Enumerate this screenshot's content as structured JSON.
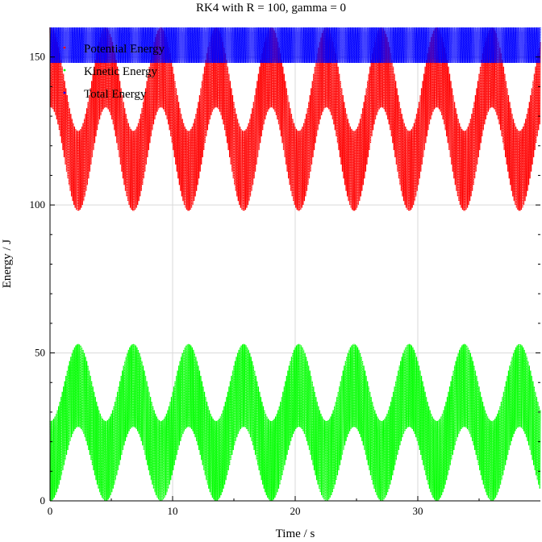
{
  "chart_data": {
    "type": "scatter",
    "title": "RK4 with R = 100, gamma = 0",
    "xlabel": "Time / s",
    "ylabel": "Energy / J",
    "xlim": [
      0,
      40
    ],
    "ylim": [
      0,
      160
    ],
    "x_ticks": [
      0,
      10,
      20,
      30
    ],
    "y_ticks": [
      0,
      50,
      100,
      150
    ],
    "grid": true,
    "legend_position": "top-left",
    "series": [
      {
        "name": "Potential Energy",
        "color": "#ff0000",
        "envelope": {
          "period_s": 4.5,
          "first_trough_s": 2.3,
          "fast_oscillation_period_s": 0.1,
          "upper_min": 125,
          "upper_max": 160,
          "lower_min": 98,
          "lower_max": 133
        }
      },
      {
        "name": "Kinetic Energy",
        "color": "#00ff00",
        "envelope": {
          "period_s": 4.5,
          "first_peak_s": 2.3,
          "fast_oscillation_period_s": 0.1,
          "upper_min": 27,
          "upper_max": 53,
          "lower_min": 0,
          "lower_max": 25
        }
      },
      {
        "name": "Total Energy",
        "color": "#0000ff",
        "envelope": {
          "fast_oscillation_period_s": 0.1,
          "upper": 160,
          "lower": 148
        }
      }
    ]
  }
}
